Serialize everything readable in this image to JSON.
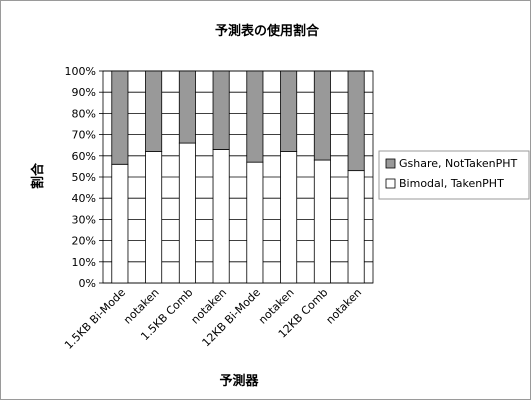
{
  "chart_data": {
    "type": "bar",
    "stacked": true,
    "percent": true,
    "title": "予測表の使用割合",
    "xlabel": "予測器",
    "ylabel": "割合",
    "categories": [
      "1.5KB Bi-Mode",
      "notaken",
      "1.5KB Comb",
      "notaken",
      "12KB Bi-Mode",
      "notaken",
      "12KB Comb",
      "notaken"
    ],
    "series": [
      {
        "name": "Bimodal, TakenPHT",
        "color": "#ffffff",
        "values": [
          56,
          62,
          66,
          63,
          57,
          62,
          58,
          53
        ]
      },
      {
        "name": "Gshare, NotTakenPHT",
        "color": "#999999",
        "values": [
          44,
          38,
          34,
          37,
          43,
          38,
          42,
          47
        ]
      }
    ],
    "ylim": [
      0,
      100
    ],
    "yticks": [
      "0%",
      "10%",
      "20%",
      "30%",
      "40%",
      "50%",
      "60%",
      "70%",
      "80%",
      "90%",
      "100%"
    ],
    "grid": true,
    "legend_position": "right"
  }
}
